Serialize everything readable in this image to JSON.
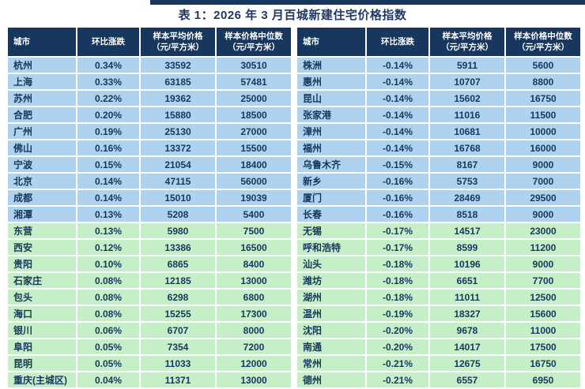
{
  "title": "表 1：2026 年 3 月百城新建住宅价格指数",
  "columns": {
    "city": "城市",
    "change": "环比涨跌",
    "avg": "样本平均价格\n（元/平方米）",
    "median": "样本价格中位数\n（元/平方米）"
  },
  "colors": {
    "header_bg": "#17375E",
    "row_blue": "#AFD2EE",
    "row_green": "#C6EFC8",
    "text_navy": "#17375E",
    "title_text": "#1F3864",
    "top_bar": "#17375E"
  },
  "left_table": {
    "rows": [
      {
        "city": "杭州",
        "change": "0.34%",
        "avg": "33592",
        "median": "30510",
        "tone": "blue"
      },
      {
        "city": "上海",
        "change": "0.33%",
        "avg": "63185",
        "median": "57481",
        "tone": "blue"
      },
      {
        "city": "苏州",
        "change": "0.22%",
        "avg": "19362",
        "median": "25000",
        "tone": "blue"
      },
      {
        "city": "合肥",
        "change": "0.20%",
        "avg": "15880",
        "median": "18500",
        "tone": "blue"
      },
      {
        "city": "广州",
        "change": "0.19%",
        "avg": "25130",
        "median": "27000",
        "tone": "blue"
      },
      {
        "city": "佛山",
        "change": "0.16%",
        "avg": "13372",
        "median": "15500",
        "tone": "blue"
      },
      {
        "city": "宁波",
        "change": "0.15%",
        "avg": "21054",
        "median": "18400",
        "tone": "blue"
      },
      {
        "city": "北京",
        "change": "0.14%",
        "avg": "47115",
        "median": "56000",
        "tone": "blue"
      },
      {
        "city": "成都",
        "change": "0.14%",
        "avg": "15010",
        "median": "19039",
        "tone": "blue"
      },
      {
        "city": "湘潭",
        "change": "0.13%",
        "avg": "5208",
        "median": "5400",
        "tone": "blue"
      },
      {
        "city": "东营",
        "change": "0.13%",
        "avg": "5980",
        "median": "7500",
        "tone": "green"
      },
      {
        "city": "西安",
        "change": "0.12%",
        "avg": "13386",
        "median": "16500",
        "tone": "green"
      },
      {
        "city": "贵阳",
        "change": "0.10%",
        "avg": "6865",
        "median": "8400",
        "tone": "green"
      },
      {
        "city": "石家庄",
        "change": "0.08%",
        "avg": "12185",
        "median": "13000",
        "tone": "green"
      },
      {
        "city": "包头",
        "change": "0.08%",
        "avg": "6298",
        "median": "6800",
        "tone": "green"
      },
      {
        "city": "海口",
        "change": "0.08%",
        "avg": "15255",
        "median": "17300",
        "tone": "green"
      },
      {
        "city": "银川",
        "change": "0.06%",
        "avg": "6707",
        "median": "8000",
        "tone": "green"
      },
      {
        "city": "阜阳",
        "change": "0.05%",
        "avg": "7354",
        "median": "7200",
        "tone": "green"
      },
      {
        "city": "昆明",
        "change": "0.05%",
        "avg": "11033",
        "median": "12000",
        "tone": "green"
      },
      {
        "city": "重庆(主城区)",
        "change": "0.04%",
        "avg": "11371",
        "median": "13000",
        "tone": "green"
      }
    ]
  },
  "right_table": {
    "rows": [
      {
        "city": "株洲",
        "change": "-0.14%",
        "avg": "5911",
        "median": "5600",
        "tone": "blue"
      },
      {
        "city": "惠州",
        "change": "-0.14%",
        "avg": "10707",
        "median": "8800",
        "tone": "blue"
      },
      {
        "city": "昆山",
        "change": "-0.14%",
        "avg": "15602",
        "median": "16750",
        "tone": "blue"
      },
      {
        "city": "张家港",
        "change": "-0.14%",
        "avg": "11016",
        "median": "11500",
        "tone": "blue"
      },
      {
        "city": "漳州",
        "change": "-0.14%",
        "avg": "10681",
        "median": "10000",
        "tone": "blue"
      },
      {
        "city": "福州",
        "change": "-0.14%",
        "avg": "16768",
        "median": "16000",
        "tone": "blue"
      },
      {
        "city": "乌鲁木齐",
        "change": "-0.15%",
        "avg": "8167",
        "median": "9000",
        "tone": "blue"
      },
      {
        "city": "新乡",
        "change": "-0.16%",
        "avg": "5753",
        "median": "7000",
        "tone": "blue"
      },
      {
        "city": "厦门",
        "change": "-0.16%",
        "avg": "28469",
        "median": "29500",
        "tone": "blue"
      },
      {
        "city": "长春",
        "change": "-0.16%",
        "avg": "8518",
        "median": "9000",
        "tone": "blue"
      },
      {
        "city": "无锡",
        "change": "-0.17%",
        "avg": "14517",
        "median": "23000",
        "tone": "green"
      },
      {
        "city": "呼和浩特",
        "change": "-0.17%",
        "avg": "8599",
        "median": "11200",
        "tone": "green"
      },
      {
        "city": "汕头",
        "change": "-0.18%",
        "avg": "10196",
        "median": "9000",
        "tone": "green"
      },
      {
        "city": "潍坊",
        "change": "-0.18%",
        "avg": "6651",
        "median": "7700",
        "tone": "green"
      },
      {
        "city": "湖州",
        "change": "-0.18%",
        "avg": "11011",
        "median": "12500",
        "tone": "green"
      },
      {
        "city": "温州",
        "change": "-0.19%",
        "avg": "18327",
        "median": "15600",
        "tone": "green"
      },
      {
        "city": "沈阳",
        "change": "-0.20%",
        "avg": "9678",
        "median": "11000",
        "tone": "green"
      },
      {
        "city": "南通",
        "change": "-0.20%",
        "avg": "14017",
        "median": "17500",
        "tone": "green"
      },
      {
        "city": "常州",
        "change": "-0.21%",
        "avg": "12675",
        "median": "16750",
        "tone": "green"
      },
      {
        "city": "德州",
        "change": "-0.21%",
        "avg": "6557",
        "median": "6950",
        "tone": "green"
      }
    ]
  }
}
